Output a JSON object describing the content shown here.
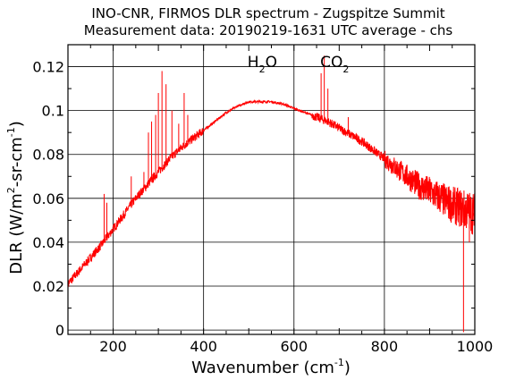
{
  "chart_data": {
    "type": "line",
    "title": "INO-CNR, FIRMOS DLR spectrum - Zugspitze Summit",
    "subtitle": "Measurement data: 20190219-1631 UTC average - chs",
    "xlabel": {
      "main": "Wavenumber (cm",
      "sup": "-1",
      "tail": ")"
    },
    "ylabel": {
      "p1": "DLR (W/m",
      "sup1": "2",
      "p2": "-sr-cm",
      "sup2": "-1",
      "p3": ")"
    },
    "xlim": [
      100,
      1000
    ],
    "ylim": [
      -0.002,
      0.13
    ],
    "xticks": [
      200,
      400,
      600,
      800,
      1000
    ],
    "xtick_labels": [
      "200",
      "400",
      "600",
      "800",
      "1000"
    ],
    "yticks": [
      0,
      0.02,
      0.04,
      0.06,
      0.08,
      0.1,
      0.12
    ],
    "ytick_labels": [
      "0",
      "0.02",
      "0.04",
      "0.06",
      "0.08",
      "0.1",
      "0.12"
    ],
    "grid": true,
    "line_color": "#ff0000",
    "annotations": [
      {
        "base": "H",
        "sub": "2",
        "rest": "O",
        "x": 530
      },
      {
        "base": "CO",
        "sub": "2",
        "rest": "",
        "x": 690
      }
    ],
    "series": [
      {
        "x": [
          100,
          125,
          150,
          175,
          200,
          225,
          250,
          275,
          300,
          325,
          350,
          375,
          400,
          425,
          450,
          475,
          500,
          525,
          550,
          575,
          600,
          625,
          650,
          675,
          700,
          725,
          750,
          775,
          800,
          825,
          850,
          875,
          900,
          925,
          950,
          975,
          1000
        ],
        "y": [
          0.021,
          0.027,
          0.033,
          0.039,
          0.046,
          0.053,
          0.06,
          0.066,
          0.072,
          0.078,
          0.083,
          0.087,
          0.091,
          0.095,
          0.099,
          0.102,
          0.104,
          0.104,
          0.104,
          0.103,
          0.101,
          0.099,
          0.097,
          0.095,
          0.092,
          0.089,
          0.086,
          0.082,
          0.078,
          0.074,
          0.07,
          0.066,
          0.063,
          0.06,
          0.057,
          0.055,
          0.053
        ]
      }
    ]
  }
}
